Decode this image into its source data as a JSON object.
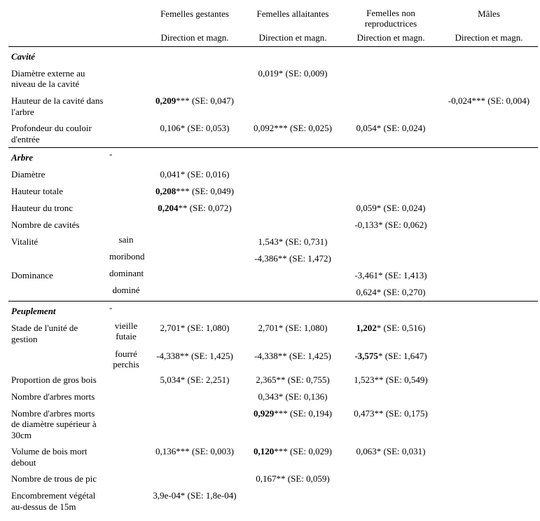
{
  "headers": {
    "col1": "Femelles gestantes",
    "col2": "Femelles allaitantes",
    "col3": "Femelles non reproductrices",
    "col4": "Mâles",
    "sub": "Direction et magn."
  },
  "sections": {
    "cavite": {
      "title": "Cavité",
      "rows": [
        {
          "label": "Diamètre externe au niveau de la cavité",
          "c1": "",
          "c2": "0,019* (SE: 0,009)",
          "c3": "",
          "c4": ""
        },
        {
          "label": "Hauteur de la cavité dans l'arbre",
          "c1": "0,209*** (SE: 0,047)",
          "c1_bold_span": "0,209",
          "c4": "-0,024*** (SE: 0,004)"
        },
        {
          "label": "Profondeur du couloir d'entrée",
          "c1": "0,106* (SE: 0,053)",
          "c2": "0,092*** (SE: 0,025)",
          "c3": "0,054* (SE: 0,024)"
        }
      ]
    },
    "arbre": {
      "title": "Arbre",
      "rows": [
        {
          "label": "Diamètre",
          "c1": "0,041* (SE: 0,016)"
        },
        {
          "label": "Hauteur totale",
          "c1": "0,208*** (SE: 0,049)",
          "c1_bold_span": "0,208"
        },
        {
          "label": "Hauteur du tronc",
          "c1": "0,204** (SE: 0,072)",
          "c1_bold_span": "0,204",
          "c3": "0,059* (SE: 0,024)"
        },
        {
          "label": "Nombre de cavités",
          "c3": "-0,133* (SE: 0,062)"
        },
        {
          "label": "Vitalité",
          "sub": "sain",
          "c2": "1,543* (SE: 0,731)"
        },
        {
          "label": "",
          "sub": "moribond",
          "c2": "-4,386** (SE: 1,472)"
        },
        {
          "label": "Dominance",
          "sub": "dominant",
          "c3": "-3,461* (SE: 1,413)"
        },
        {
          "label": "",
          "sub": "dominé",
          "c3": "0,624* (SE: 0,270)"
        }
      ]
    },
    "peuplement": {
      "title": "Peuplement",
      "rows": [
        {
          "label": "Stade de l'unité de gestion",
          "sub": "vieille futaie",
          "c1": "2,701* (SE: 1,080)",
          "c2": "2,701* (SE: 1,080)",
          "c3": "1,202* (SE: 0,516)",
          "c3_bold_span": "1,202"
        },
        {
          "label": "",
          "sub": "fourré perchis",
          "c1": "-4,338** (SE: 1,425)",
          "c2": "-4,338** (SE: 1,425)",
          "c3": "-3,575* (SE: 1,647)",
          "c3_bold_span": "-3,575"
        },
        {
          "label": "Proportion de gros bois",
          "c1": "5,034* (SE: 2,251)",
          "c2": "2,365** (SE: 0,755)",
          "c3": "1,523** (SE: 0,549)"
        },
        {
          "label": "Nombre d'arbres morts",
          "c2": "0,343* (SE: 0,136)"
        },
        {
          "label": "Nombre d'arbres morts de diamètre supérieur à 30cm",
          "c2": "0,929*** (SE: 0,194)",
          "c2_bold_span": "0,929",
          "c3": "0,473** (SE: 0,175)"
        },
        {
          "label": "Volume de bois mort debout",
          "c1": "0,136*** (SE: 0,003)",
          "c2": "0,120*** (SE: 0,029)",
          "c2_bold_span": "0,120",
          "c3": "0,063* (SE: 0,031)"
        },
        {
          "label": "Nombre de trous de pic",
          "c2": "0,167** (SE: 0,059)"
        },
        {
          "label": "Encombrement végétal au-dessus de 15m",
          "c1": "3,9e-04* (SE: 1,8e-04)"
        }
      ]
    }
  }
}
